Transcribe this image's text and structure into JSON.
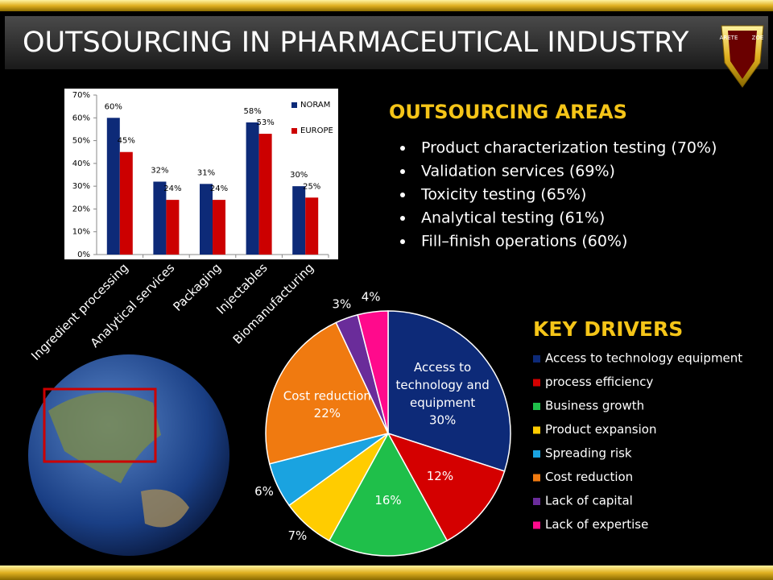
{
  "title": "OUTSOURCING IN PHARMACEUTICAL INDUSTRY",
  "logo": [
    "ARETE",
    "ZOE"
  ],
  "outsourcing_areas": {
    "heading": "OUTSOURCING AREAS",
    "items": [
      "Product characterization testing  (70%)",
      "Validation services (69%)",
      "Toxicity testing (65%)",
      "Analytical testing (61%)",
      "Fill–finish operations (60%)"
    ]
  },
  "chart_data": [
    {
      "type": "bar",
      "categories": [
        "Ingredient processing",
        "Analytical services",
        "Packaging",
        "Injectables",
        "Biomanufacturing"
      ],
      "series": [
        {
          "name": "NORAM",
          "color": "#0d2a78",
          "values": [
            60,
            32,
            31,
            58,
            30
          ],
          "value_labels": [
            "60%",
            "32%",
            "31%",
            "58%",
            "30%"
          ]
        },
        {
          "name": "EUROPE",
          "color": "#cc0000",
          "values": [
            45,
            24,
            24,
            53,
            25
          ],
          "value_labels": [
            "45%",
            "24%",
            "24%",
            "53%",
            "25%"
          ]
        }
      ],
      "ylim": [
        0,
        70
      ],
      "yticks": [
        {
          "value": 0,
          "label": "0%"
        },
        {
          "value": 10,
          "label": "10%"
        },
        {
          "value": 20,
          "label": "20%"
        },
        {
          "value": 30,
          "label": "30%"
        },
        {
          "value": 40,
          "label": "40%"
        },
        {
          "value": 50,
          "label": "50%"
        },
        {
          "value": 60,
          "label": "60%"
        },
        {
          "value": 70,
          "label": "70%"
        }
      ],
      "legend": "top-right"
    },
    {
      "type": "pie",
      "legend_title": "KEY DRIVERS",
      "categories": [
        "Access to technology equipment",
        "process efficiency",
        "Business growth",
        "Product expansion",
        "Spreading risk",
        "Cost reduction",
        "Lack of capital",
        "Lack of expertise"
      ],
      "values": [
        30,
        12,
        16,
        7,
        6,
        22,
        3,
        4
      ],
      "value_labels": [
        "30%",
        "12%",
        "16%",
        "7%",
        "6%",
        "22%",
        "3%",
        "4%"
      ],
      "slice_labels": [
        "Access to technology and equipment",
        null,
        null,
        null,
        null,
        "Cost reduction",
        null,
        null
      ],
      "colors": [
        "#0d2a78",
        "#d40000",
        "#1fbf4a",
        "#ffcc00",
        "#1aa3e0",
        "#f07a10",
        "#6a2c9a",
        "#ff0a8c"
      ]
    }
  ]
}
